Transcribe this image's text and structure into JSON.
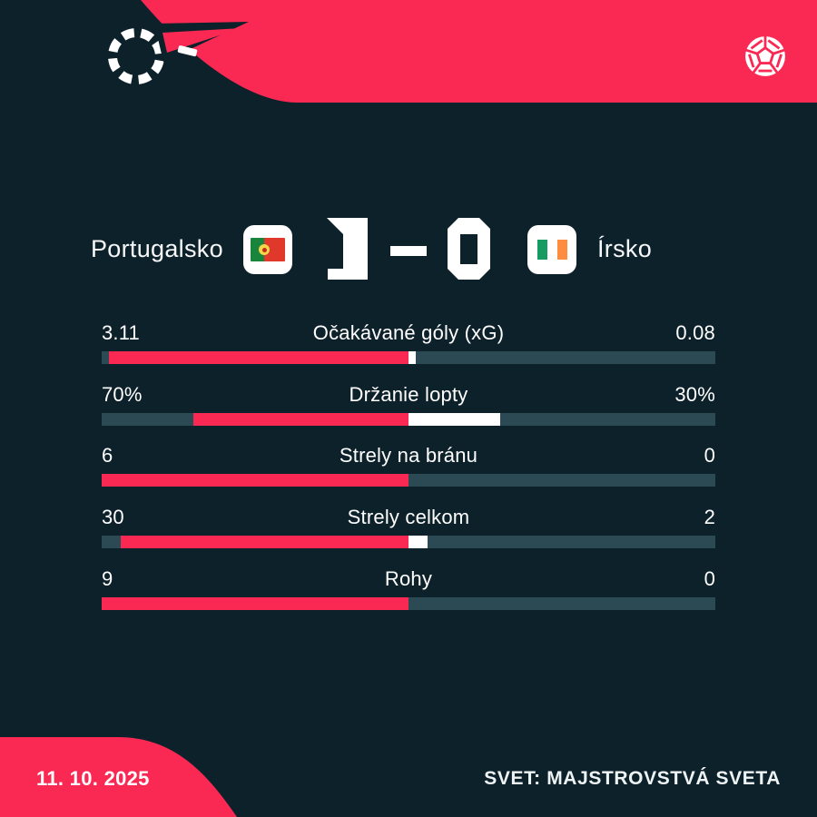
{
  "colors": {
    "background": "#0d212b",
    "accent_red": "#f92953",
    "bar_track": "#2b4a53",
    "bar_home": "#f92953",
    "bar_away": "#ffffff",
    "text": "#ffffff"
  },
  "branding": {
    "logo": "flashscore-logo",
    "ball": "soccer-ball-icon"
  },
  "scoreboard": {
    "home_team": "Portugalsko",
    "away_team": "Írsko",
    "home_score": "1",
    "away_score": "0",
    "separator": "-",
    "home_flag": "portugal-flag",
    "away_flag": "ireland-flag"
  },
  "chart_data": {
    "type": "bar",
    "subtype": "center-anchored opposing horizontal bars, share of home+away per stat",
    "legend_position": "none",
    "grid": false,
    "series": [
      {
        "name": "Portugalsko",
        "color": "#f92953",
        "values": [
          3.11,
          70,
          6,
          30,
          9
        ]
      },
      {
        "name": "Írsko",
        "color": "#ffffff",
        "values": [
          0.08,
          30,
          0,
          2,
          0
        ]
      }
    ],
    "categories": [
      "Očakávané góly (xG)",
      "Držanie lopty",
      "Strely na bránu",
      "Strely celkom",
      "Rohy"
    ],
    "stats": [
      {
        "label": "Očakávané góly (xG)",
        "home_display": "3.11",
        "away_display": "0.08",
        "home": 3.11,
        "away": 0.08
      },
      {
        "label": "Držanie lopty",
        "home_display": "70%",
        "away_display": "30%",
        "home": 70,
        "away": 30
      },
      {
        "label": "Strely na bránu",
        "home_display": "6",
        "away_display": "0",
        "home": 6,
        "away": 0
      },
      {
        "label": "Strely celkom",
        "home_display": "30",
        "away_display": "2",
        "home": 30,
        "away": 2
      },
      {
        "label": "Rohy",
        "home_display": "9",
        "away_display": "0",
        "home": 9,
        "away": 0
      }
    ]
  },
  "footer": {
    "date": "11. 10. 2025",
    "competition": "SVET: MAJSTROVSTVÁ SVETA"
  }
}
